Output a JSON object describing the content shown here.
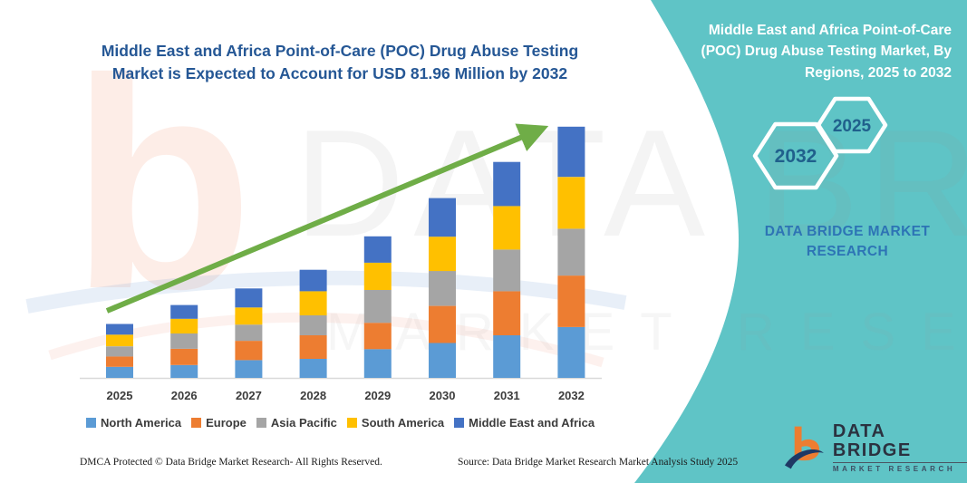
{
  "chart_data": {
    "type": "bar",
    "stacked": true,
    "title": "Middle East and Africa Point-of-Care (POC) Drug Abuse Testing Market is Expected to Account for USD 81.96 Million by 2032",
    "unit": "USD Million",
    "xlabel": "",
    "ylabel": "",
    "grid": false,
    "legend_position": "bottom",
    "categories": [
      "2025",
      "2026",
      "2027",
      "2028",
      "2029",
      "2030",
      "2031",
      "2032"
    ],
    "series": [
      {
        "name": "North America",
        "color": "#5B9BD5",
        "values": [
          3.6,
          4.2,
          5.8,
          6.2,
          9.4,
          11.4,
          13.9,
          16.6
        ]
      },
      {
        "name": "Europe",
        "color": "#ED7D31",
        "values": [
          3.4,
          5.3,
          6.3,
          7.7,
          8.6,
          12.1,
          14.4,
          16.8
        ]
      },
      {
        "name": "Asia Pacific",
        "color": "#A5A5A5",
        "values": [
          3.3,
          5.0,
          5.3,
          6.5,
          10.7,
          11.4,
          13.6,
          15.3
        ]
      },
      {
        "name": "South America",
        "color": "#FFC000",
        "values": [
          3.8,
          4.8,
          5.6,
          7.9,
          8.9,
          11.2,
          14.2,
          16.9
        ]
      },
      {
        "name": "Middle East and Africa",
        "color": "#4472C4",
        "values": [
          3.5,
          4.5,
          6.2,
          7.0,
          8.6,
          12.6,
          14.4,
          16.4
        ]
      }
    ],
    "totals": [
      17.6,
      23.8,
      29.2,
      35.3,
      46.2,
      58.7,
      70.5,
      81.96
    ],
    "key_value_2032": 81.96,
    "trend_arrow": {
      "present": true,
      "color": "#6FAD47"
    },
    "axis_label_color": "#3C3C3C",
    "baseline_color": "#D9D9D9"
  },
  "panel": {
    "title": "Middle East and Africa Point-of-Care (POC) Drug Abuse Testing Market, By Regions, 2025 to 2032",
    "hex_large_label": "2032",
    "hex_small_label": "2025",
    "brand_line1": "DATA BRIDGE MARKET",
    "brand_line2": "RESEARCH",
    "logo_title": "DATA BRIDGE",
    "logo_subtitle": "MARKET RESEARCH",
    "colors": {
      "background": "#5FC4C6",
      "title_text": "#FFFFFF",
      "hex_label": "#20608C",
      "brand_text": "#2D74B5"
    }
  },
  "watermark": {
    "letter_b": "b",
    "line1": "DATA BRIDGE",
    "line2": "MARKET RESEARCH"
  },
  "footer": {
    "dmca": "DMCA Protected © Data Bridge Market Research-  All Rights Reserved.",
    "source": "Source: Data Bridge Market Research  Market Analysis Study 2025"
  }
}
